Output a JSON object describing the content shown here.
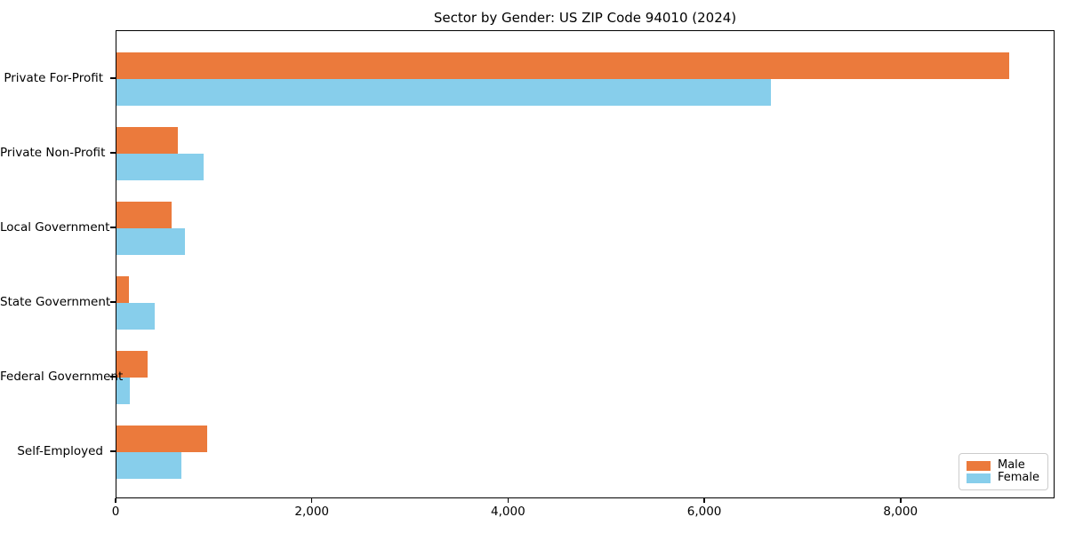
{
  "title": "Sector by Gender: US ZIP Code 94010 (2024)",
  "colors": {
    "male": "#eb7a3c",
    "female": "#87ceeb",
    "spine": "#000000",
    "text": "#000000",
    "legend_border": "#cccccc",
    "background": "#ffffff"
  },
  "legend": {
    "position": "lower right",
    "items": [
      {
        "label": "Male",
        "color": "#eb7a3c"
      },
      {
        "label": "Female",
        "color": "#87ceeb"
      }
    ]
  },
  "chart_data": {
    "type": "bar",
    "orientation": "horizontal",
    "title": "Sector by Gender: US ZIP Code 94010 (2024)",
    "categories": [
      "Private For-Profit",
      "Private Non-Profit",
      "Local Government",
      "State Government",
      "Federal Government",
      "Self-Employed"
    ],
    "series": [
      {
        "name": "Male",
        "color": "#eb7a3c",
        "values": [
          9100,
          625,
          560,
          125,
          315,
          920
        ]
      },
      {
        "name": "Female",
        "color": "#87ceeb",
        "values": [
          6670,
          885,
          700,
          385,
          140,
          660
        ]
      }
    ],
    "xlabel": "",
    "ylabel": "",
    "xlim": [
      0,
      9570
    ],
    "x_ticks": [
      0,
      2000,
      4000,
      6000,
      8000
    ],
    "x_tick_labels": [
      "0",
      "2,000",
      "4,000",
      "6,000",
      "8,000"
    ],
    "grid": false,
    "legend_position": "lower right"
  }
}
